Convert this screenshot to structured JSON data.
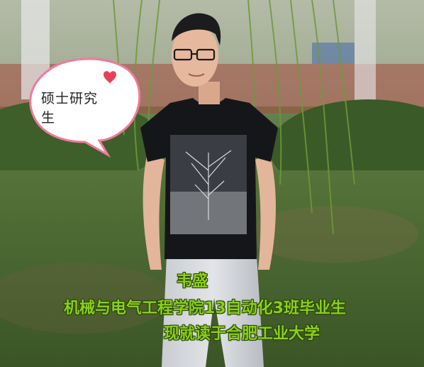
{
  "bubble": {
    "text_line1": "硕士研究",
    "text_line2": "生"
  },
  "caption": {
    "name": "韦盛",
    "line1": "机械与电气工程学院13自动化3班毕业生",
    "line2": "现就读于合肥工业大学"
  },
  "colors": {
    "caption_green": "#8ccf1a",
    "bubble_border": "#f07a9a",
    "heart": "#e8405a"
  }
}
